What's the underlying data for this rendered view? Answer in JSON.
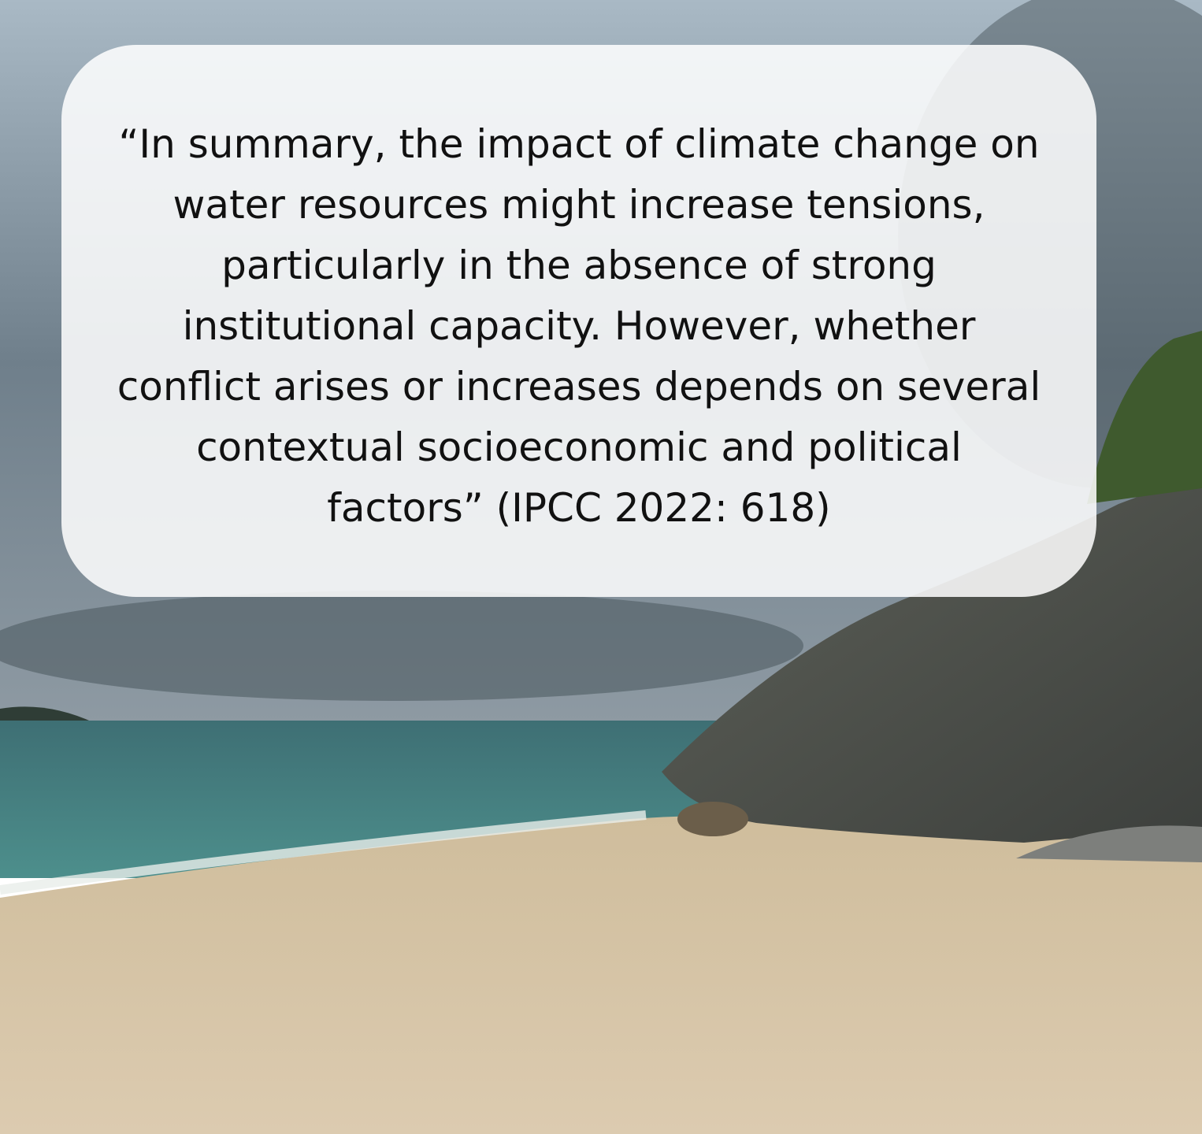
{
  "quote": {
    "lines": [
      "“In summary, the impact of climate change on",
      "water resources might increase tensions,",
      "particularly in the absence of strong",
      "institutional capacity. However, whether",
      "conflict arises or increases depends on several",
      "contextual socioeconomic and political",
      "factors” (IPCC 2022: 618)"
    ]
  }
}
